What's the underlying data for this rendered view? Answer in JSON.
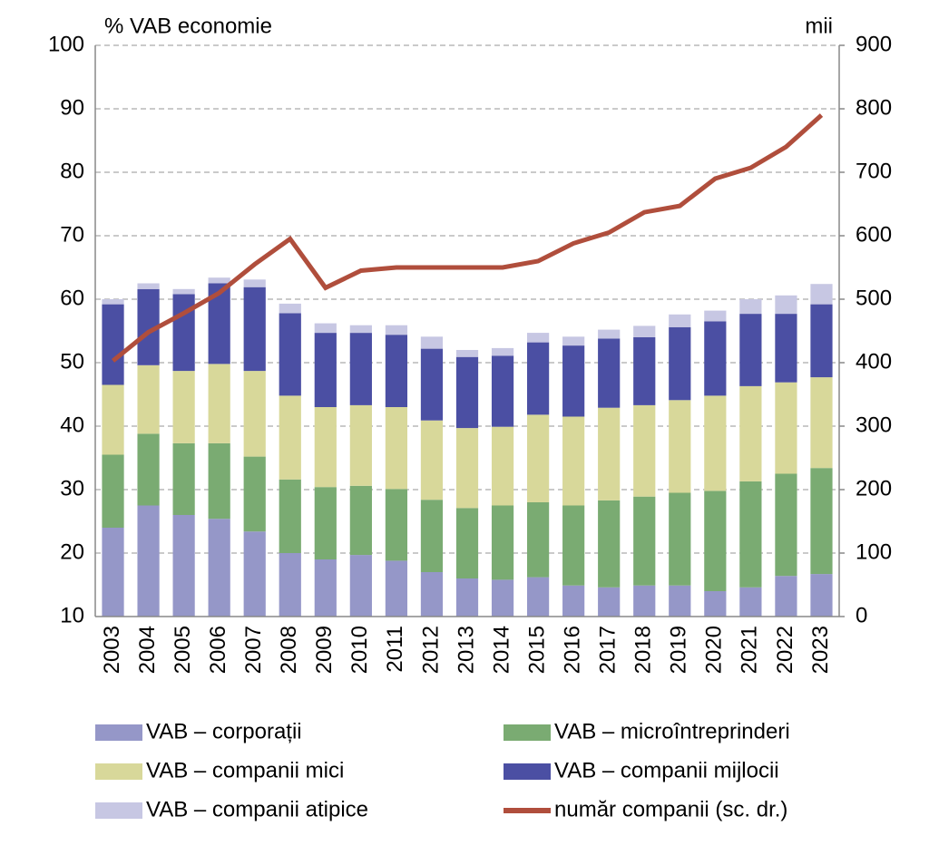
{
  "chart_data": {
    "type": "bar",
    "y_axis_label": "% VAB economie",
    "y2_axis_label": "mii",
    "categories": [
      "2003",
      "2004",
      "2005",
      "2006",
      "2007",
      "2008",
      "2009",
      "2010",
      "2011",
      "2012",
      "2013",
      "2014",
      "2015",
      "2016",
      "2017",
      "2018",
      "2019",
      "2020",
      "2021",
      "2022",
      "2023"
    ],
    "ylim": [
      10,
      100
    ],
    "yticks": [
      10,
      20,
      30,
      40,
      50,
      60,
      70,
      80,
      90,
      100
    ],
    "y2lim": [
      0,
      900
    ],
    "y2ticks": [
      0,
      100,
      200,
      300,
      400,
      500,
      600,
      700,
      800,
      900
    ],
    "grid": true,
    "stacked": true,
    "series": [
      {
        "name": "VAB – corporații",
        "color": "#9597c8",
        "values": [
          24,
          27.5,
          26,
          25.4,
          23.4,
          20,
          19,
          19.7,
          18.8,
          17,
          16,
          15.8,
          16.2,
          14.9,
          14.6,
          14.9,
          14.9,
          14,
          14.6,
          16.4,
          16.7
        ]
      },
      {
        "name": "VAB – microîntreprinderi",
        "color": "#7aab72",
        "values": [
          11.5,
          11.3,
          11.3,
          11.9,
          11.8,
          11.6,
          11.4,
          10.9,
          11.3,
          11.4,
          11.1,
          11.7,
          11.8,
          12.6,
          13.7,
          14,
          14.6,
          15.8,
          16.7,
          16.1,
          16.7
        ]
      },
      {
        "name": "VAB – companii mici",
        "color": "#d8d89a",
        "values": [
          11,
          10.8,
          11.4,
          12.5,
          13.5,
          13.2,
          12.6,
          12.7,
          12.9,
          12.5,
          12.6,
          12.4,
          13.8,
          14,
          14.6,
          14.4,
          14.6,
          15,
          15,
          14.4,
          14.3
        ]
      },
      {
        "name": "VAB – companii mijlocii",
        "color": "#4b4fa3",
        "values": [
          12.7,
          12,
          12.1,
          12.7,
          13.2,
          13,
          11.7,
          11.4,
          11.4,
          11.3,
          11.2,
          11.2,
          11.4,
          11.2,
          10.9,
          10.7,
          11.5,
          11.7,
          11.4,
          10.8,
          11.5
        ]
      },
      {
        "name": "VAB – companii atipice",
        "color": "#c7c7e3",
        "values": [
          0.8,
          0.9,
          0.8,
          0.9,
          1.2,
          1.5,
          1.5,
          1.2,
          1.5,
          1.9,
          1.1,
          1.2,
          1.5,
          1.4,
          1.4,
          1.8,
          2,
          1.7,
          2.3,
          2.9,
          3.2
        ]
      },
      {
        "name": "număr companii (sc. dr.)",
        "color": "#b04e3c",
        "type": "line",
        "axis": "y2",
        "values": [
          403,
          448,
          478,
          510,
          555,
          595,
          518,
          545,
          550,
          550,
          550,
          550,
          560,
          588,
          605,
          637,
          647,
          690,
          707,
          740,
          790
        ]
      }
    ]
  }
}
